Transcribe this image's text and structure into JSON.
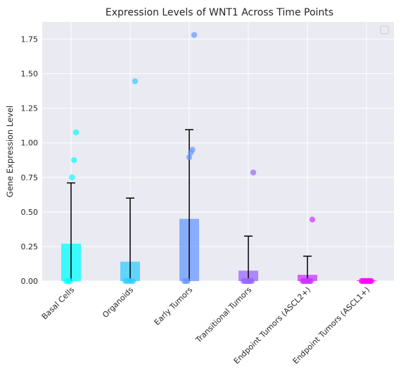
{
  "chart_data": {
    "type": "bar",
    "title": "Expression Levels of WNT1 Across Time Points",
    "xlabel": "",
    "ylabel": "Gene Expression Level",
    "ylim": [
      0,
      1.875
    ],
    "yticks": [
      "0.00",
      "0.25",
      "0.50",
      "0.75",
      "1.00",
      "1.25",
      "1.50",
      "1.75"
    ],
    "grid": true,
    "legend": "top-right, empty",
    "categories": [
      "Basal Cells",
      "Organoids",
      "Early Tumors",
      "Transitional Tumors",
      "Endpoint Tumors (ASCL2+)",
      "Endpoint Tumors (ASCL1+)"
    ],
    "colors": [
      "#00ffff",
      "#33ccff",
      "#6699ff",
      "#9966ff",
      "#cc33ff",
      "#ff00ff"
    ],
    "means": [
      0.27,
      0.14,
      0.45,
      0.075,
      0.045,
      0.005
    ],
    "error_upper": [
      0.71,
      0.6,
      1.095,
      0.325,
      0.18,
      0.005
    ],
    "points": [
      [
        0.0,
        0.0,
        0.0,
        0.75,
        0.875,
        1.075
      ],
      [
        0.0,
        0.0,
        0.0,
        0.0,
        0.0,
        1.445
      ],
      [
        0.0,
        0.0,
        0.0,
        0.895,
        0.93,
        0.95,
        1.78
      ],
      [
        0.0,
        0.0,
        0.0,
        0.0,
        0.0,
        0.0,
        0.0,
        0.785
      ],
      [
        0.0,
        0.0,
        0.0,
        0.0,
        0.0,
        0.0,
        0.0,
        0.445
      ],
      [
        0.0,
        0.0,
        0.0,
        0.0,
        0.0,
        0.0,
        0.0,
        0.0,
        0.0
      ]
    ]
  }
}
